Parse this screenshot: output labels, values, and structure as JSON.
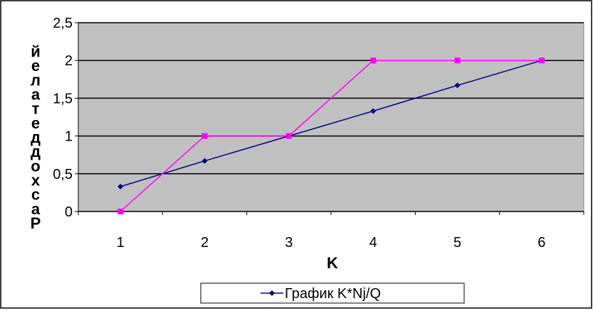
{
  "chart_data": {
    "type": "line",
    "title": "",
    "xlabel": "K",
    "ylabel": "Расход деталей",
    "categories": [
      "1",
      "2",
      "3",
      "4",
      "5",
      "6"
    ],
    "ylim": [
      0,
      2.5
    ],
    "yticks": [
      0,
      0.5,
      1,
      1.5,
      2,
      2.5
    ],
    "ytick_labels": [
      "0",
      "0,5",
      "1",
      "1,5",
      "2",
      "2,5"
    ],
    "grid": true,
    "legend_placement": "bottom",
    "plot_background": "#c0c0c0",
    "series": [
      {
        "name": "График K*Nj/Q",
        "color": "#000080",
        "marker": "diamond",
        "values": [
          0.33,
          0.67,
          1.0,
          1.33,
          1.67,
          2.0
        ]
      },
      {
        "color": "#ff00ff",
        "marker": "square",
        "values": [
          0,
          1,
          1,
          2,
          2,
          2
        ]
      }
    ]
  }
}
